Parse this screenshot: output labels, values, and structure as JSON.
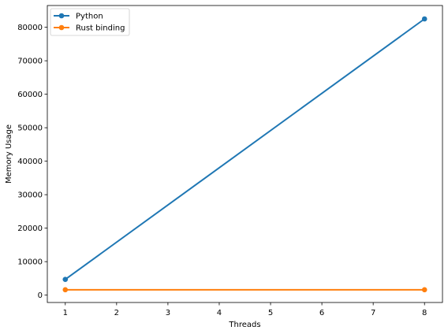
{
  "chart_data": {
    "type": "line",
    "title": "",
    "xlabel": "Threads",
    "ylabel": "Memory Usage",
    "xlim": [
      0.65,
      8.35
    ],
    "ylim": [
      -2200,
      86500
    ],
    "x_ticks": [
      1,
      2,
      3,
      4,
      5,
      6,
      7,
      8
    ],
    "y_ticks": [
      0,
      10000,
      20000,
      30000,
      40000,
      50000,
      60000,
      70000,
      80000
    ],
    "grid": false,
    "legend_position": "upper left",
    "series": [
      {
        "name": "Python",
        "color": "#1f77b4",
        "marker": "circle",
        "x": [
          1,
          8
        ],
        "y": [
          4700,
          82500
        ]
      },
      {
        "name": "Rust binding",
        "color": "#ff7f0e",
        "marker": "circle",
        "x": [
          1,
          8
        ],
        "y": [
          1600,
          1600
        ]
      }
    ]
  }
}
